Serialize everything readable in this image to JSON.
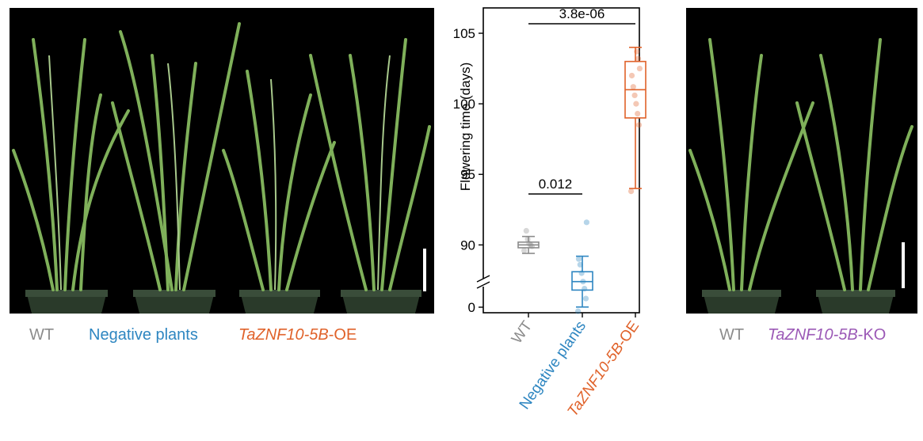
{
  "left_panel": {
    "captions": [
      {
        "text": "WT",
        "color": "#8c8c8c"
      },
      {
        "text": "Negative plants",
        "color": "#2e86c1"
      },
      {
        "gene": "TaZNF10-5B",
        "suffix": "-OE",
        "color": "#e0622a"
      }
    ]
  },
  "right_panel": {
    "captions": [
      {
        "text": "WT",
        "color": "#8c8c8c"
      },
      {
        "gene": "TaZNF10-5B",
        "suffix": "-KO",
        "color": "#9b59b6"
      }
    ]
  },
  "chart_data": {
    "type": "box",
    "title": "",
    "ylabel": "Flowering time (days)",
    "yticks": [
      0,
      90,
      95,
      100,
      105
    ],
    "axis_break": true,
    "categories": [
      {
        "label": "WT",
        "color": "#8c8c8c",
        "q1": 89.8,
        "median": 90.0,
        "q3": 90.2,
        "whisker_low": 89.4,
        "whisker_high": 90.6,
        "points": [
          89.6,
          89.9,
          90.0,
          90.1,
          90.4,
          91.0
        ]
      },
      {
        "label": "Negative plants",
        "color": "#2e86c1",
        "q1": 86.8,
        "median": 87.4,
        "q3": 88.1,
        "whisker_low": 85.6,
        "whisker_high": 89.2,
        "points": [
          85.3,
          86.2,
          86.9,
          87.4,
          88.0,
          88.6,
          89.0,
          91.6
        ]
      },
      {
        "label": "TaZNF10-5B-OE",
        "label_gene": "TaZNF10-5B",
        "label_suffix": "-OE",
        "color": "#e0622a",
        "q1": 99.0,
        "median": 101.0,
        "q3": 103.0,
        "whisker_low": 94.0,
        "whisker_high": 104.0,
        "points": [
          93.8,
          98.5,
          99.3,
          100.0,
          100.6,
          101.2,
          102.0,
          102.5,
          103.2,
          103.7
        ]
      }
    ],
    "annotations": [
      {
        "text": "0.012",
        "from": 0,
        "to": 1
      },
      {
        "text": "3.8e-06",
        "from": 0,
        "to": 2
      }
    ]
  }
}
